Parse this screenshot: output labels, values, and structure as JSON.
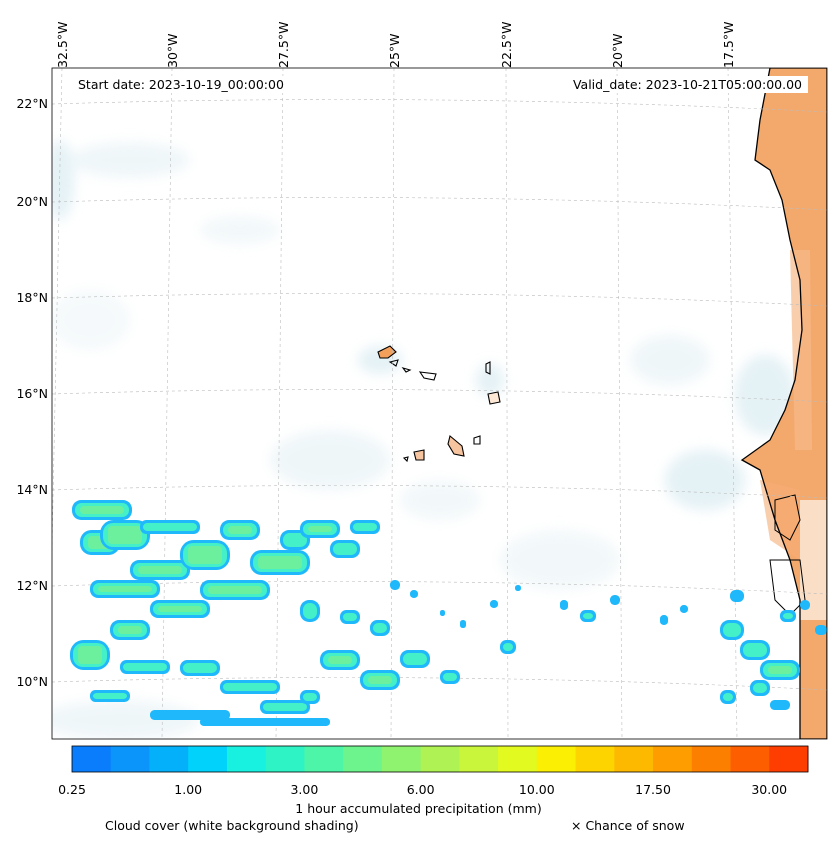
{
  "map": {
    "start_date": "Start date: 2023-10-19_00:00:00",
    "valid_date": "Valid_date: 2023-10-21T05:00:00.00",
    "lon_labels": [
      "32.5°W",
      "30°W",
      "27.5°W",
      "25°W",
      "22.5°W",
      "20°W",
      "17.5°W"
    ],
    "lat_labels": [
      "22°N",
      "20°N",
      "18°N",
      "16°N",
      "14°N",
      "12°N",
      "10°N"
    ]
  },
  "colorbar": {
    "title": "1 hour accumulated precipitation (mm)",
    "tick_labels": [
      "0.25",
      "1.00",
      "3.00",
      "6.00",
      "10.00",
      "17.50",
      "30.00"
    ],
    "colors": [
      "#0a7dfc",
      "#0b95fb",
      "#05b0fb",
      "#00d2fb",
      "#18f0e0",
      "#2ef3c4",
      "#4df5a8",
      "#6ef48c",
      "#8ff36f",
      "#aef254",
      "#c9f63a",
      "#e2fa1f",
      "#fbf004",
      "#fdd400",
      "#fdb900",
      "#fd9d00",
      "#fd7f00",
      "#fd5f00",
      "#fd3e00"
    ]
  },
  "legend": {
    "cloud_cover": "Cloud cover (white background shading)",
    "snow": "× Chance of snow"
  },
  "colors": {
    "land_orange": "#f3a05c",
    "precip_light": "#1fb8fb",
    "precip_mid": "#44f0c8",
    "precip_core": "#7ef08c",
    "cloud_haze": "#cfe6ee"
  }
}
